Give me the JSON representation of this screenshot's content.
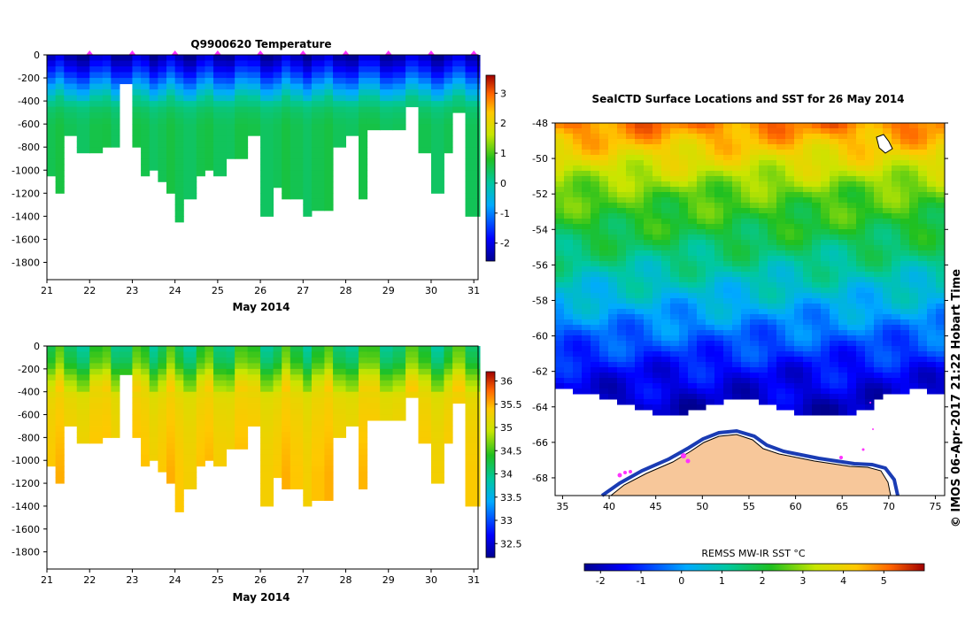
{
  "chart_data": [
    {
      "type": "heatmap",
      "title": "Q9900620  Temperature",
      "xlabel": "May 2014",
      "ylabel": "",
      "x_ticks": [
        "21",
        "22",
        "23",
        "24",
        "25",
        "26",
        "27",
        "28",
        "29",
        "30",
        "31"
      ],
      "y_ticks": [
        "0",
        "-200",
        "-400",
        "-600",
        "-800",
        "-1000",
        "-1200",
        "-1400",
        "-1600",
        "-1800"
      ],
      "xlim": [
        21,
        31.1
      ],
      "ylim": [
        -1950,
        0
      ],
      "colorbar_ticks": [
        "3",
        "2",
        "1",
        "0",
        "-1",
        "-2"
      ],
      "colorbar_range": [
        -2.6,
        3.6
      ],
      "profile_marker_days": [
        22,
        23,
        24,
        25,
        26,
        27,
        28,
        29,
        30,
        31
      ],
      "profile_days": [
        21.0,
        21.2,
        21.4,
        21.7,
        22.0,
        22.3,
        22.5,
        22.7,
        23.0,
        23.2,
        23.4,
        23.6,
        23.8,
        24.0,
        24.2,
        24.5,
        24.7,
        24.9,
        25.2,
        25.4,
        25.7,
        26.0,
        26.3,
        26.5,
        26.7,
        27.0,
        27.2,
        27.5,
        27.7,
        28.0,
        28.3,
        28.5,
        28.8,
        29.1,
        29.4,
        29.7,
        30.0,
        30.3,
        30.5,
        30.8,
        31.1
      ],
      "profile_max_depth": [
        1030,
        1190,
        700,
        840,
        840,
        790,
        790,
        230,
        790,
        1020,
        980,
        1060,
        1190,
        1440,
        1220,
        1040,
        1000,
        1020,
        860,
        860,
        700,
        1400,
        1140,
        1210,
        1210,
        1390,
        1310,
        1310,
        770,
        690,
        1210,
        640,
        640,
        640,
        420,
        840,
        1200,
        840,
        490,
        1400,
        1400
      ],
      "layer_depths": [
        0,
        150,
        300,
        450,
        600
      ],
      "layer_values": [
        -2.4,
        -1.6,
        -0.6,
        0.3,
        0.5
      ]
    },
    {
      "type": "heatmap",
      "title": "",
      "xlabel": "May 2014",
      "ylabel": "",
      "x_ticks": [
        "21",
        "22",
        "23",
        "24",
        "25",
        "26",
        "27",
        "28",
        "29",
        "30",
        "31"
      ],
      "y_ticks": [
        "0",
        "-200",
        "-400",
        "-600",
        "-800",
        "-1000",
        "-1200",
        "-1400",
        "-1600",
        "-1800"
      ],
      "xlim": [
        21,
        31.1
      ],
      "ylim": [
        -1950,
        0
      ],
      "colorbar_ticks": [
        "36",
        "35.5",
        "35",
        "34.5",
        "34",
        "33.5",
        "33",
        "32.5"
      ],
      "colorbar_range": [
        32.2,
        36.2
      ],
      "profile_days": [
        21.0,
        21.2,
        21.4,
        21.7,
        22.0,
        22.3,
        22.5,
        22.7,
        23.0,
        23.2,
        23.4,
        23.6,
        23.8,
        24.0,
        24.2,
        24.5,
        24.7,
        24.9,
        25.2,
        25.4,
        25.7,
        26.0,
        26.3,
        26.5,
        26.7,
        27.0,
        27.2,
        27.5,
        27.7,
        28.0,
        28.3,
        28.5,
        28.8,
        29.1,
        29.4,
        29.7,
        30.0,
        30.3,
        30.5,
        30.8,
        31.1
      ],
      "profile_max_depth": [
        1030,
        1190,
        700,
        840,
        840,
        790,
        790,
        230,
        790,
        1020,
        980,
        1060,
        1190,
        1440,
        1220,
        1040,
        1000,
        1020,
        860,
        860,
        700,
        1400,
        1140,
        1210,
        1210,
        1390,
        1310,
        1310,
        770,
        690,
        1210,
        640,
        640,
        640,
        420,
        840,
        1200,
        840,
        490,
        1400,
        1400
      ],
      "layer_depths": [
        0,
        150,
        300,
        450,
        700,
        1100
      ],
      "layer_values": [
        34.2,
        34.4,
        34.9,
        35.2,
        35.3,
        35.4
      ]
    },
    {
      "type": "heatmap",
      "title": "SealCTD Surface Locations and SST for 26 May 2014",
      "xlabel": "",
      "ylabel": "",
      "x_ticks": [
        "35",
        "40",
        "45",
        "50",
        "55",
        "60",
        "65",
        "70",
        "75"
      ],
      "y_ticks": [
        "-48",
        "-50",
        "-52",
        "-54",
        "-56",
        "-58",
        "-60",
        "-62",
        "-64",
        "-66",
        "-68"
      ],
      "xlim": [
        34.2,
        76
      ],
      "ylim": [
        -69,
        -48
      ],
      "colorbar_label": "REMSS MW-IR SST °C",
      "colorbar_ticks": [
        "-2",
        "-1",
        "0",
        "1",
        "2",
        "3",
        "4",
        "5"
      ],
      "colorbar_range": [
        -2.4,
        6.0
      ],
      "sst_lat_profile": [
        {
          "lat": -48,
          "sst": 5.0
        },
        {
          "lat": -50,
          "sst": 3.8
        },
        {
          "lat": -52,
          "sst": 2.6
        },
        {
          "lat": -54,
          "sst": 2.0
        },
        {
          "lat": -56,
          "sst": 1.2
        },
        {
          "lat": -58,
          "sst": 0.4
        },
        {
          "lat": -60,
          "sst": -0.5
        },
        {
          "lat": -62,
          "sst": -1.4
        },
        {
          "lat": -64,
          "sst": -1.9
        }
      ],
      "credit": "© IMOS 06-Apr-2017 21:22 Hobart Time"
    }
  ],
  "colors": {
    "land": "#f7c79a",
    "marker": "#ff33ff",
    "background": "#ffffff"
  }
}
